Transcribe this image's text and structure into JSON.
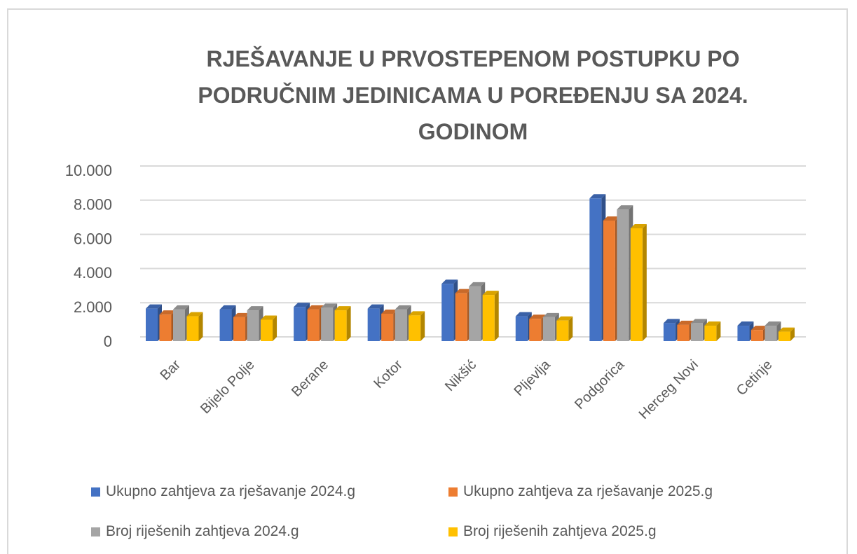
{
  "chart_data": {
    "type": "bar",
    "title": "RJEŠAVANJE U PRVOSTEPENOM POSTUPKU PO PODRUČNIM JEDINICAMA U POREĐENJU SA 2024. GODINOM",
    "categories": [
      "Bar",
      "Bijelo Polje",
      "Berane",
      "Kotor",
      "Nikšić",
      "Pljevlja",
      "Podgorica",
      "Herceg Novi",
      "Cetinje"
    ],
    "series": [
      {
        "name": "Ukupno zahtjeva za rješavanje 2024.g",
        "color": "#4472c4",
        "values": [
          1900,
          1850,
          2000,
          1900,
          3350,
          1450,
          8350,
          1050,
          900
        ]
      },
      {
        "name": "Ukupno zahtjeva za rješavanje 2025.g",
        "color": "#ed7d31",
        "values": [
          1550,
          1400,
          1850,
          1600,
          2800,
          1300,
          7050,
          950,
          650
        ]
      },
      {
        "name": "Broj riješenih zahtjeva 2024.g",
        "color": "#a5a5a5",
        "values": [
          1850,
          1800,
          1950,
          1850,
          3200,
          1400,
          7700,
          1050,
          900
        ]
      },
      {
        "name": "Broj riješenih zahtjeva 2025.g",
        "color": "#ffc000",
        "values": [
          1450,
          1250,
          1800,
          1500,
          2700,
          1200,
          6600,
          900,
          550
        ]
      }
    ],
    "ylim": [
      0,
      10000
    ],
    "yticks": [
      0,
      {
        "value": 2000,
        "label": "2.000"
      },
      {
        "value": 4000,
        "label": "4.000"
      },
      {
        "value": 6000,
        "label": "6.000"
      },
      {
        "value": 8000,
        "label": "8.000"
      },
      {
        "value": 10000,
        "label": "10.000"
      }
    ],
    "grid": true,
    "legend": "bottom"
  }
}
